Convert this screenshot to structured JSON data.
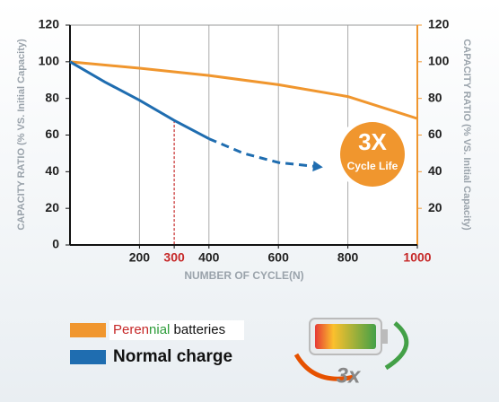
{
  "chart_data": {
    "type": "line",
    "x_title": "NUMBER OF CYCLE(N)",
    "y_title": "CAPACITY RATIO (% VS. Initial Capacity)",
    "y2_title": "CAPACITY RATIO (% VS. Initial Capacity)",
    "xlim": [
      0,
      1000
    ],
    "xticks": [
      200,
      300,
      400,
      600,
      800,
      1000
    ],
    "highlight_xticks": [
      300,
      1000
    ],
    "highlight_color": "#c62828",
    "grid_x": [
      200,
      400,
      600,
      800
    ],
    "ylim": [
      0,
      120
    ],
    "yticks": [
      0,
      20,
      40,
      60,
      80,
      100,
      120
    ],
    "y2lim": [
      0,
      120
    ],
    "y2ticks": [
      20,
      40,
      60,
      80,
      100,
      120
    ],
    "series": [
      {
        "name": "Perennial batteries",
        "color": "#f0962e",
        "x": [
          0,
          200,
          400,
          600,
          800,
          1000
        ],
        "values": [
          100,
          96.5,
          92.5,
          87.5,
          81,
          69
        ]
      },
      {
        "name": "Normal charge",
        "color": "#1f6db0",
        "x": [
          0,
          100,
          200,
          300,
          400,
          500,
          600,
          700
        ],
        "values": [
          100,
          89,
          79,
          68,
          58,
          50,
          45,
          43
        ],
        "dashed_from": 4
      }
    ],
    "dropline": {
      "series": 1,
      "index": 3,
      "color": "#c62828"
    },
    "badge": {
      "title": "3X",
      "subtitle": "Cycle Life",
      "color": "#f0962e"
    },
    "icon_text": "3x"
  }
}
